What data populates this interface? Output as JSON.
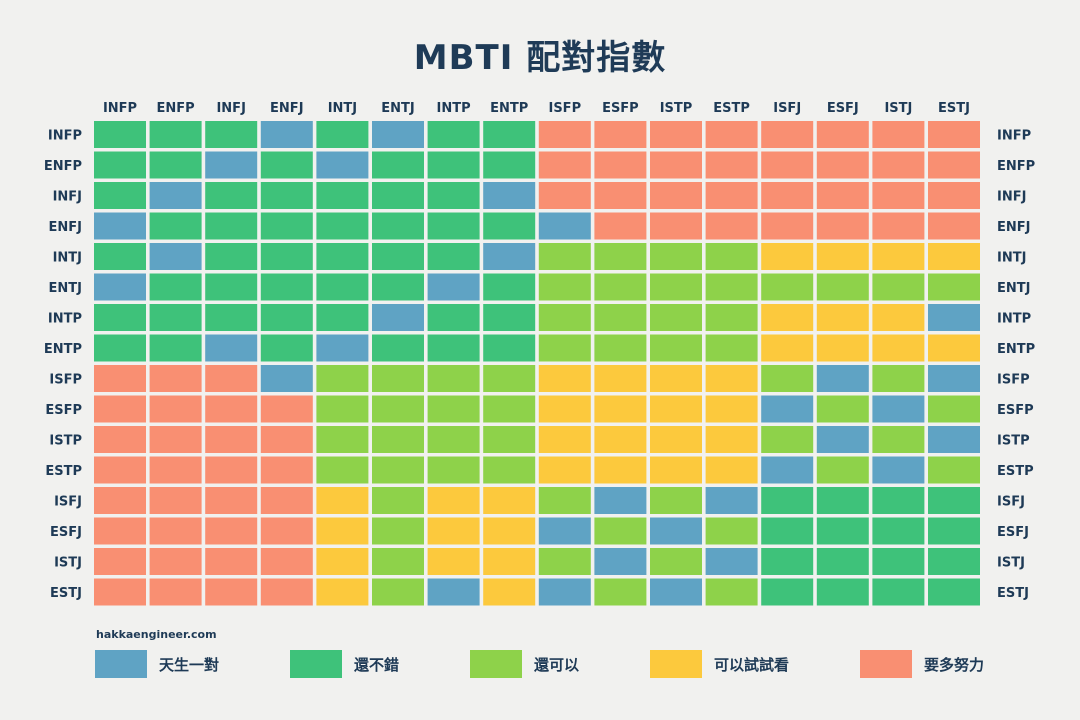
{
  "title": "MBTI 配對指數",
  "source": "hakkaengineer.com",
  "chart_data": {
    "type": "heatmap",
    "types": [
      "INFP",
      "ENFP",
      "INFJ",
      "ENFJ",
      "INTJ",
      "ENTJ",
      "INTP",
      "ENTP",
      "ISFP",
      "ESFP",
      "ISTP",
      "ESTP",
      "ISFJ",
      "ESFJ",
      "ISTJ",
      "ESTJ"
    ],
    "categories": [
      {
        "key": "1",
        "label": "天生一對",
        "color": "#5fa3c4"
      },
      {
        "key": "2",
        "label": "還不錯",
        "color": "#3ec27a"
      },
      {
        "key": "3",
        "label": "還可以",
        "color": "#8ed24a"
      },
      {
        "key": "4",
        "label": "可以試試看",
        "color": "#fcc93d"
      },
      {
        "key": "5",
        "label": "要多努力",
        "color": "#f98f72"
      }
    ],
    "matrix": [
      [
        2,
        2,
        2,
        1,
        2,
        1,
        2,
        2,
        5,
        5,
        5,
        5,
        5,
        5,
        5,
        5
      ],
      [
        2,
        2,
        1,
        2,
        1,
        2,
        2,
        2,
        5,
        5,
        5,
        5,
        5,
        5,
        5,
        5
      ],
      [
        2,
        1,
        2,
        2,
        2,
        2,
        2,
        1,
        5,
        5,
        5,
        5,
        5,
        5,
        5,
        5
      ],
      [
        1,
        2,
        2,
        2,
        2,
        2,
        2,
        2,
        1,
        5,
        5,
        5,
        5,
        5,
        5,
        5
      ],
      [
        2,
        1,
        2,
        2,
        2,
        2,
        2,
        1,
        3,
        3,
        3,
        3,
        4,
        4,
        4,
        4
      ],
      [
        1,
        2,
        2,
        2,
        2,
        2,
        1,
        2,
        3,
        3,
        3,
        3,
        3,
        3,
        3,
        3
      ],
      [
        2,
        2,
        2,
        2,
        2,
        1,
        2,
        2,
        3,
        3,
        3,
        3,
        4,
        4,
        4,
        1
      ],
      [
        2,
        2,
        1,
        2,
        1,
        2,
        2,
        2,
        3,
        3,
        3,
        3,
        4,
        4,
        4,
        4
      ],
      [
        5,
        5,
        5,
        1,
        3,
        3,
        3,
        3,
        4,
        4,
        4,
        4,
        3,
        1,
        3,
        1
      ],
      [
        5,
        5,
        5,
        5,
        3,
        3,
        3,
        3,
        4,
        4,
        4,
        4,
        1,
        3,
        1,
        3
      ],
      [
        5,
        5,
        5,
        5,
        3,
        3,
        3,
        3,
        4,
        4,
        4,
        4,
        3,
        1,
        3,
        1
      ],
      [
        5,
        5,
        5,
        5,
        3,
        3,
        3,
        3,
        4,
        4,
        4,
        4,
        1,
        3,
        1,
        3
      ],
      [
        5,
        5,
        5,
        5,
        4,
        3,
        4,
        4,
        3,
        1,
        3,
        1,
        2,
        2,
        2,
        2
      ],
      [
        5,
        5,
        5,
        5,
        4,
        3,
        4,
        4,
        1,
        3,
        1,
        3,
        2,
        2,
        2,
        2
      ],
      [
        5,
        5,
        5,
        5,
        4,
        3,
        4,
        4,
        3,
        1,
        3,
        1,
        2,
        2,
        2,
        2
      ],
      [
        5,
        5,
        5,
        5,
        4,
        3,
        1,
        4,
        1,
        3,
        1,
        3,
        2,
        2,
        2,
        2
      ]
    ]
  }
}
